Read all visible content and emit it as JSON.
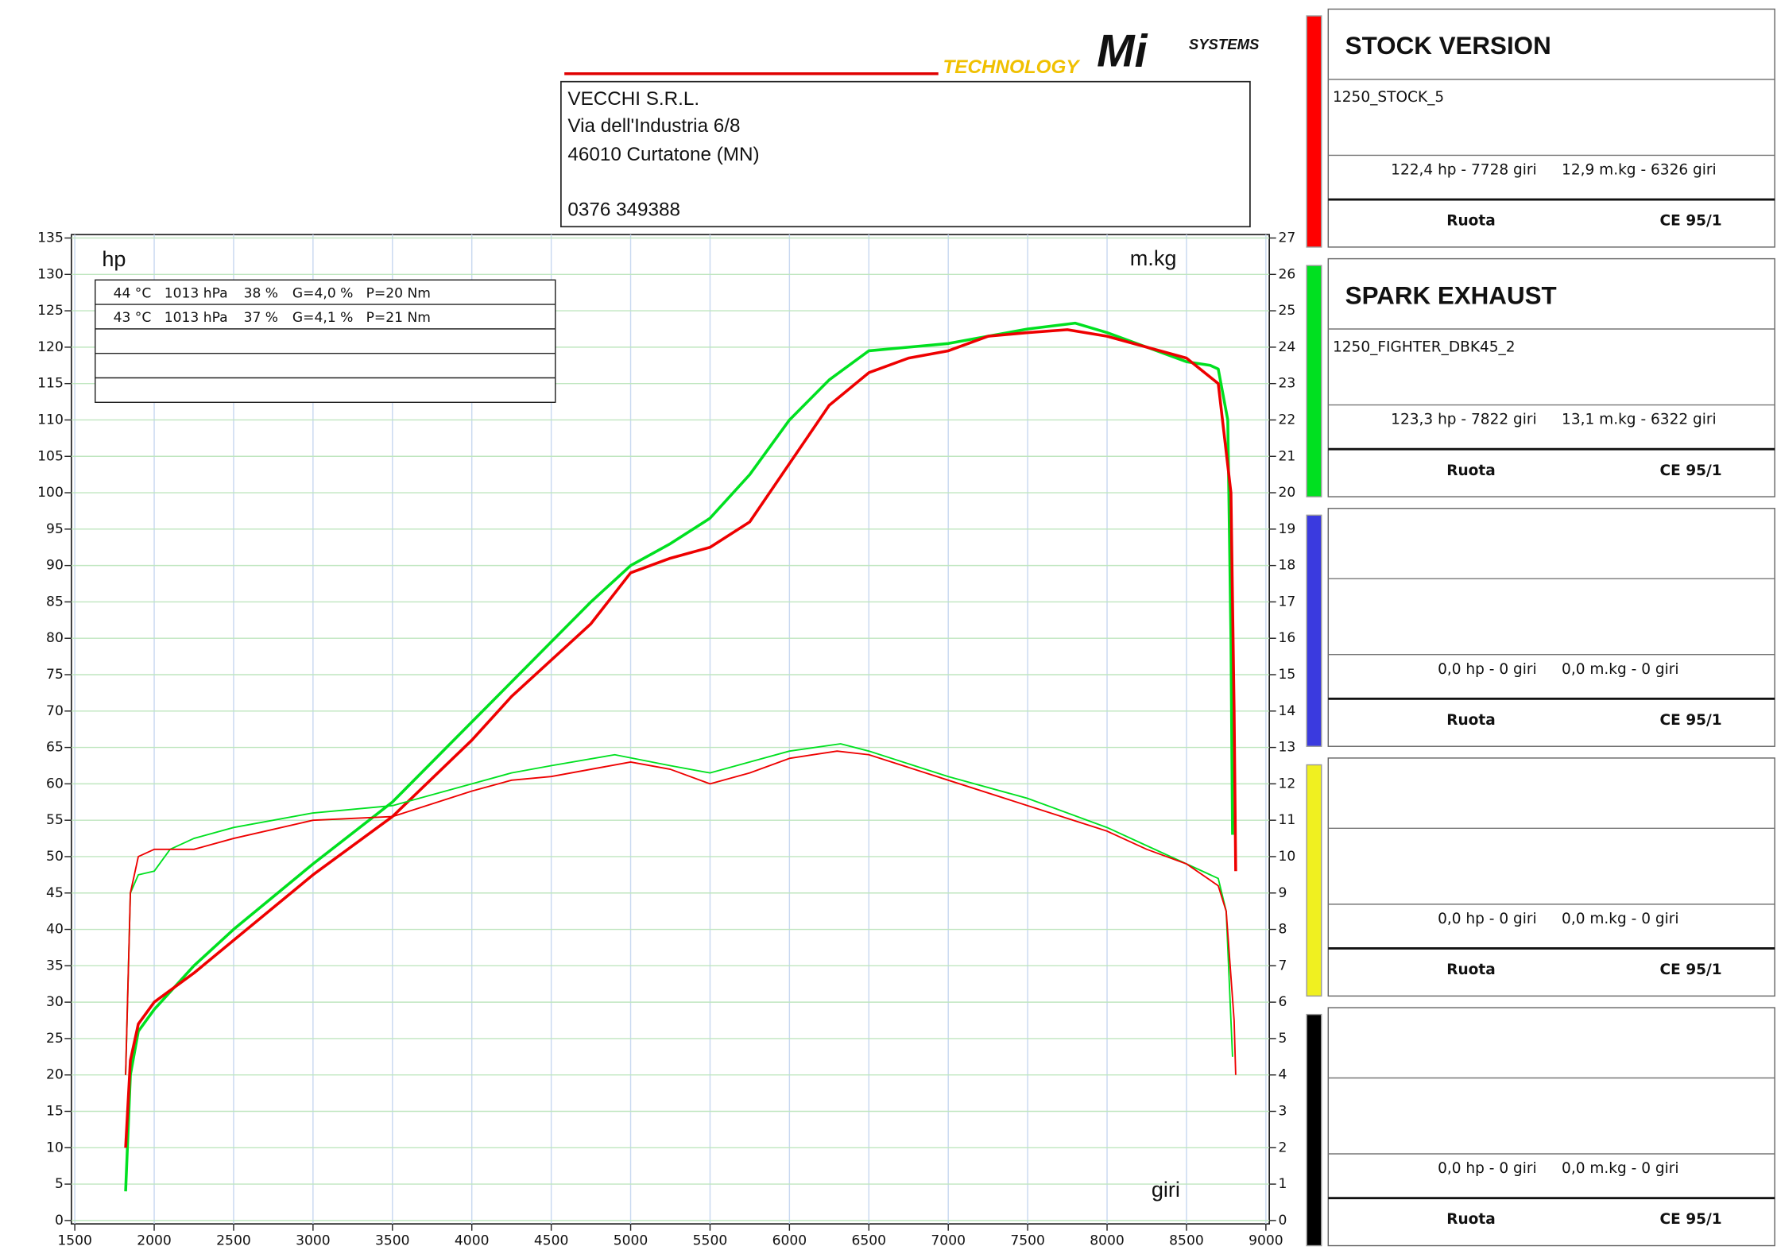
{
  "logo": {
    "left": "TECHNOLOGY",
    "mark": "Mi",
    "right": "SYSTEMS"
  },
  "header": {
    "lines": [
      "VECCHI S.R.L.",
      "Via dell'Industria 6/8",
      "46010 Curtatone (MN)"
    ],
    "phone": "0376 349388"
  },
  "conditions": {
    "rows": [
      [
        "44 °C",
        "1013 hPa",
        "38 %",
        "G=4,0 %",
        "P=20 Nm"
      ],
      [
        "43 °C",
        "1013 hPa",
        "37 %",
        "G=4,1 %",
        "P=21 Nm"
      ],
      [],
      [],
      []
    ]
  },
  "panels": [
    {
      "color": "#ff0000",
      "title": "STOCK VERSION",
      "file": "1250_STOCK_5",
      "power": "122,4 hp - 7728 giri",
      "torque": "12,9 m.kg - 6326 giri",
      "wheel": "Ruota",
      "norm": "CE 95/1"
    },
    {
      "color": "#00e020",
      "title": "SPARK EXHAUST",
      "file": "1250_FIGHTER_DBK45_2",
      "power": "123,3 hp - 7822 giri",
      "torque": "13,1 m.kg - 6322 giri",
      "wheel": "Ruota",
      "norm": "CE 95/1"
    },
    {
      "color": "#3a3adf",
      "power": "0,0 hp - 0 giri",
      "torque": "0,0 m.kg - 0 giri",
      "wheel": "Ruota",
      "norm": "CE 95/1"
    },
    {
      "color": "#f0f020",
      "power": "0,0 hp - 0 giri",
      "torque": "0,0 m.kg - 0 giri",
      "wheel": "Ruota",
      "norm": "CE 95/1"
    },
    {
      "color": "#000000",
      "power": "0,0 hp - 0 giri",
      "torque": "0,0 m.kg - 0 giri",
      "wheel": "Ruota",
      "norm": "CE 95/1"
    }
  ],
  "chart_data": {
    "type": "line",
    "y_label": "hp",
    "y2_label": "m.kg",
    "x_label": "giri",
    "xlim": [
      1500,
      9000
    ],
    "xticks": [
      1500,
      2000,
      2500,
      3000,
      3500,
      4000,
      4500,
      5000,
      5500,
      6000,
      6500,
      7000,
      7500,
      8000,
      8500,
      9000
    ],
    "ylim": [
      0,
      135
    ],
    "yticks": [
      0,
      5,
      10,
      15,
      20,
      25,
      30,
      35,
      40,
      45,
      50,
      55,
      60,
      65,
      70,
      75,
      80,
      85,
      90,
      95,
      100,
      105,
      110,
      115,
      120,
      125,
      130,
      135
    ],
    "y2lim": [
      0,
      27
    ],
    "y2ticks": [
      0,
      1,
      2,
      3,
      4,
      5,
      6,
      7,
      8,
      9,
      10,
      11,
      12,
      13,
      14,
      15,
      16,
      17,
      18,
      19,
      20,
      21,
      22,
      23,
      24,
      25,
      26,
      27
    ],
    "grid": true,
    "series": [
      {
        "color": "#00e020",
        "width": 2.5,
        "x": [
          1820,
          1850,
          1900,
          2000,
          2250,
          2500,
          3000,
          3500,
          4000,
          4250,
          4500,
          4750,
          5000,
          5250,
          5500,
          5750,
          6000,
          6250,
          6500,
          6750,
          7000,
          7250,
          7500,
          7800,
          8000,
          8250,
          8500,
          8650,
          8700,
          8760,
          8780,
          8790
        ],
        "values": [
          4,
          20,
          26,
          29,
          35,
          40,
          49,
          57.5,
          68.5,
          74,
          79.5,
          85,
          90,
          93,
          96.5,
          102.5,
          110,
          115.5,
          119.5,
          120,
          120.5,
          121.5,
          122.5,
          123.3,
          122,
          120,
          118,
          117.5,
          117,
          110,
          80,
          53
        ]
      },
      {
        "color": "#ee0000",
        "width": 2.5,
        "x": [
          1820,
          1850,
          1900,
          2000,
          2250,
          2500,
          3000,
          3500,
          4000,
          4250,
          4500,
          4750,
          5000,
          5250,
          5500,
          5750,
          6000,
          6250,
          6500,
          6750,
          7000,
          7250,
          7500,
          7750,
          8000,
          8250,
          8500,
          8700,
          8780,
          8800,
          8810
        ],
        "values": [
          10,
          22,
          27,
          30,
          34,
          38.5,
          47.5,
          55.5,
          66,
          72,
          77,
          82,
          89,
          91,
          92.5,
          96,
          104,
          112,
          116.5,
          118.5,
          119.5,
          121.5,
          122,
          122.4,
          121.5,
          120,
          118.5,
          115,
          100,
          70,
          48
        ]
      },
      {
        "color": "#00e020",
        "width": 1.3,
        "axis": "y2",
        "x": [
          1820,
          1850,
          1900,
          2000,
          2100,
          2250,
          2500,
          3000,
          3500,
          4000,
          4250,
          4500,
          4900,
          5250,
          5500,
          5750,
          6000,
          6322,
          6500,
          7000,
          7500,
          8000,
          8250,
          8500,
          8700,
          8750,
          8790
        ],
        "values": [
          4,
          9,
          9.5,
          9.6,
          10.2,
          10.5,
          10.8,
          11.2,
          11.4,
          12,
          12.3,
          12.5,
          12.8,
          12.5,
          12.3,
          12.6,
          12.9,
          13.1,
          12.9,
          12.2,
          11.6,
          10.8,
          10.3,
          9.8,
          9.4,
          8.5,
          4.5
        ]
      },
      {
        "color": "#ee0000",
        "width": 1.3,
        "axis": "y2",
        "x": [
          1820,
          1850,
          1900,
          2000,
          2250,
          2500,
          3000,
          3500,
          4000,
          4250,
          4500,
          5000,
          5250,
          5500,
          5750,
          6000,
          6300,
          6500,
          7000,
          7500,
          8000,
          8250,
          8500,
          8700,
          8750,
          8800,
          8810
        ],
        "values": [
          4,
          9,
          10,
          10.2,
          10.2,
          10.5,
          11,
          11.1,
          11.8,
          12.1,
          12.2,
          12.6,
          12.4,
          12,
          12.3,
          12.7,
          12.9,
          12.8,
          12.1,
          11.4,
          10.7,
          10.2,
          9.8,
          9.2,
          8.5,
          5.5,
          4
        ]
      }
    ]
  }
}
